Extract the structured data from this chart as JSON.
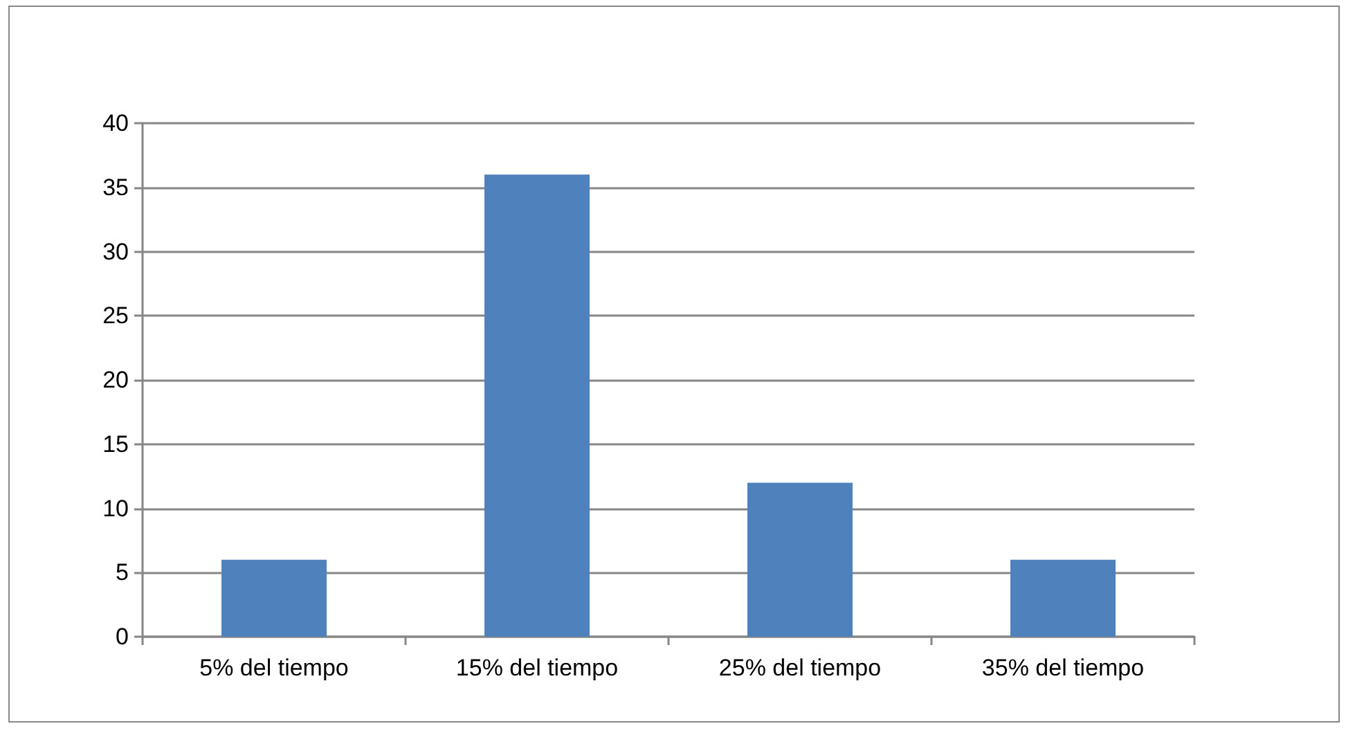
{
  "chart_data": {
    "type": "bar",
    "categories": [
      "5% del tiempo",
      "15% del tiempo",
      "25% del tiempo",
      "35% del tiempo"
    ],
    "values": [
      6,
      36,
      12,
      6
    ],
    "color": "#4f81bd",
    "ylim": [
      0,
      40
    ],
    "yticks": [
      0,
      5,
      10,
      15,
      20,
      25,
      30,
      35,
      40
    ],
    "grid": "y"
  }
}
